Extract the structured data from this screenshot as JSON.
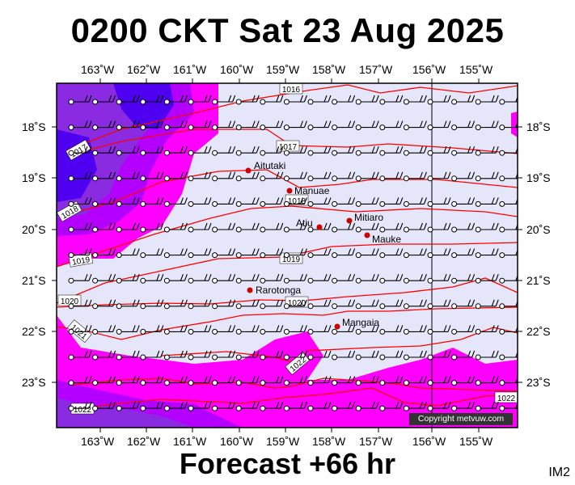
{
  "header": {
    "title": "0200 CKT Sat 23 Aug 2025"
  },
  "footer": {
    "forecast": "Forecast +66 hr",
    "code": "IM2"
  },
  "map": {
    "copyright": "Copyright metvuw.com",
    "lon_labels": [
      "163˚W",
      "162˚W",
      "161˚W",
      "160˚W",
      "159˚W",
      "158˚W",
      "157˚W",
      "156˚W",
      "155˚W"
    ],
    "lat_labels": [
      "18˚S",
      "19˚S",
      "20˚S",
      "21˚S",
      "22˚S",
      "23˚S"
    ],
    "isobar_labels": [
      "1016",
      "1017",
      "1017",
      "1018",
      "1018",
      "1019",
      "1019",
      "1020",
      "1020",
      "1021",
      "1022",
      "1022"
    ],
    "places": [
      {
        "name": "Aitutaki",
        "marker": "red"
      },
      {
        "name": "Manuae",
        "marker": "red"
      },
      {
        "name": "Mitiaro",
        "marker": "red"
      },
      {
        "name": "Atiu",
        "marker": "red"
      },
      {
        "name": "Mauke",
        "marker": "red"
      },
      {
        "name": "Rarotonga",
        "marker": "red"
      },
      {
        "name": "Mangaia",
        "marker": "red"
      }
    ],
    "colors": {
      "background": "#e6e6fa",
      "rain_magenta": "#ff00ff",
      "rain_purple": "#b400ff",
      "rain_violet": "#8a2be2",
      "rain_blue": "#5000f0",
      "isobar": "#ff0000",
      "place": "#cc0000"
    }
  }
}
